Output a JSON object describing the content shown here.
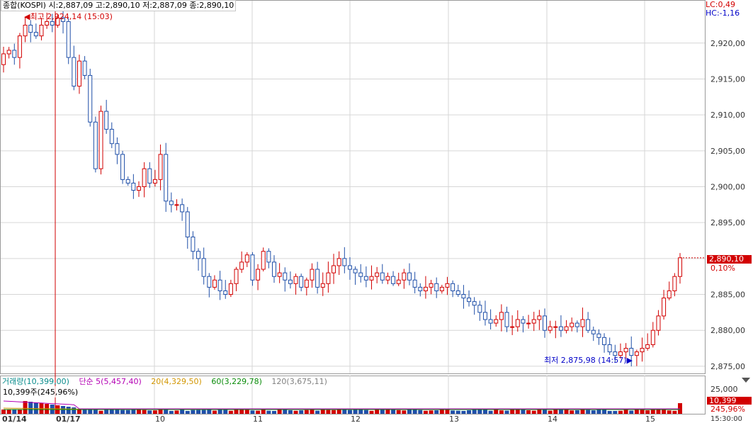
{
  "legend": {
    "title": "종합(KOSPI)",
    "open": "시:2,887,09",
    "high": "고:2,890,10",
    "low": "저:2,887,09",
    "close": "종:2,890,10"
  },
  "markers": {
    "high_label": "최고 2,924,14 (15:03)",
    "low_label": "최저 2,875,98 (14:57)",
    "lc": "LC:0,49",
    "hc": "HC:-1,16"
  },
  "price_panel": {
    "current_price": "2,890,10",
    "current_change": "0,10%"
  },
  "volume_panel": {
    "volume_label": "거래량(10,399,00)",
    "ma5_label": "단순 5(5,457,40)",
    "ma20_label": "20(4,329,50)",
    "ma60_label": "60(3,229,78)",
    "ma120_label": "120(3,675,11)",
    "sub_label": "10,399주(245,96%)",
    "scale_label": "25,000",
    "current_volume": "10,399",
    "current_volume_pct": "245,96%",
    "time_label": "15:30:00"
  },
  "colors": {
    "up": "#d20000",
    "down": "#1f4fa8",
    "grid": "#d6d6d6",
    "ma5": "#b400b4",
    "ma20": "#d29600",
    "ma60": "#0a8c0a",
    "ma120": "#808080"
  },
  "chart_data": {
    "type": "candlestick",
    "y_ticks": [
      "2,920,00",
      "2,915,00",
      "2,910,00",
      "2,905,00",
      "2,900,00",
      "2,895,00",
      "2,890,00",
      "2,885,00",
      "2,880,00",
      "2,875,00"
    ],
    "y_tick_values": [
      2920,
      2915,
      2910,
      2905,
      2900,
      2895,
      2890,
      2885,
      2880,
      2875
    ],
    "y_range": [
      2874,
      2926
    ],
    "x_labels": [
      "01/14",
      "01/17",
      "10",
      "11",
      "12",
      "13",
      "14",
      "15"
    ],
    "high": 2924.14,
    "low": 2875.98,
    "last": 2890.1,
    "close_series": [
      2918.5,
      2919.0,
      2918.0,
      2921.0,
      2922.5,
      2921.5,
      2921.0,
      2922.5,
      2923.0,
      2922.5,
      2923.5,
      2923.0,
      2918.0,
      2914.0,
      2917.5,
      2915.5,
      2909.0,
      2902.5,
      2910.5,
      2908.0,
      2906.0,
      2904.5,
      2901.0,
      2900.5,
      2899.5,
      2900.0,
      2902.5,
      2900.5,
      2901.0,
      2904.5,
      2898.0,
      2897.5,
      2897.5,
      2896.5,
      2893.0,
      2891.0,
      2890.0,
      2887.5,
      2886.0,
      2887.0,
      2885.5,
      2885.0,
      2886.5,
      2888.5,
      2889.5,
      2890.5,
      2887.0,
      2888.5,
      2891.0,
      2889.5,
      2887.5,
      2888.0,
      2887.0,
      2886.5,
      2887.5,
      2886.0,
      2887.0,
      2888.5,
      2886.0,
      2886.5,
      2888.0,
      2889.0,
      2890.0,
      2889.0,
      2888.5,
      2888.0,
      2887.5,
      2887.0,
      2887.5,
      2888.0,
      2887.0,
      2887.5,
      2886.5,
      2887.0,
      2888.0,
      2887.0,
      2886.0,
      2885.5,
      2886.0,
      2886.5,
      2885.5,
      2886.0,
      2886.5,
      2885.5,
      2885.0,
      2884.5,
      2884.0,
      2883.5,
      2882.5,
      2881.5,
      2881.0,
      2881.5,
      2882.5,
      2880.5,
      2880.5,
      2881.5,
      2881.0,
      2881.0,
      2881.5,
      2882.0,
      2880.0,
      2880.5,
      2880.5,
      2880.0,
      2880.5,
      2881.0,
      2880.5,
      2881.5,
      2880.0,
      2879.5,
      2879.0,
      2878.0,
      2877.0,
      2876.5,
      2877.0,
      2877.5,
      2876.5,
      2877.0,
      2877.5,
      2878.0,
      2880.0,
      2882.0,
      2884.5,
      2885.5,
      2887.5,
      2890.1
    ]
  }
}
